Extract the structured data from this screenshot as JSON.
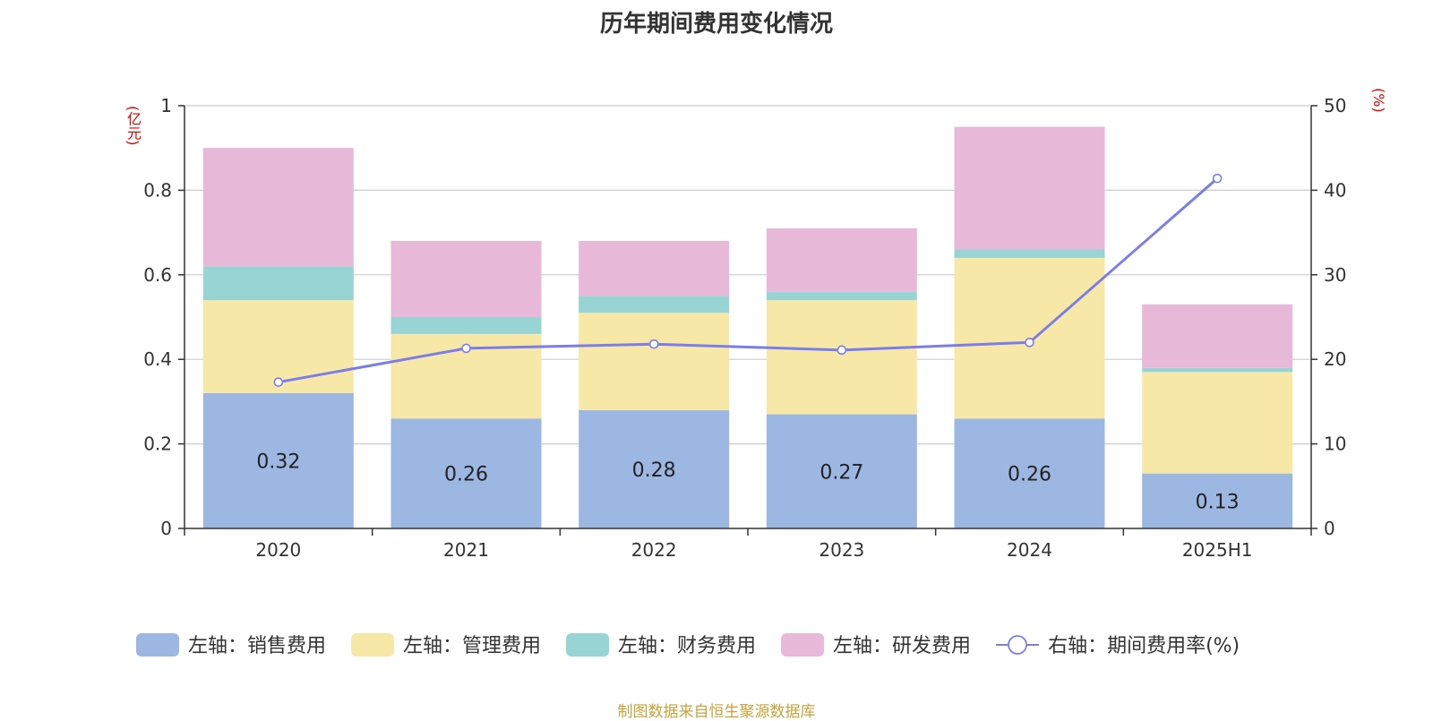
{
  "title": "历年期间费用变化情况",
  "footer": "制图数据来自恒生聚源数据库",
  "chart_data": {
    "type": "bar",
    "stacked": true,
    "title": "历年期间费用变化情况",
    "categories": [
      "2020",
      "2021",
      "2022",
      "2023",
      "2024",
      "2025H1"
    ],
    "y_left": {
      "unit": "(亿元)",
      "ylim": [
        0,
        1
      ],
      "ticks": [
        0,
        0.2,
        0.4,
        0.6,
        0.8,
        1
      ],
      "tick_labels": [
        "0",
        "0.2",
        "0.4",
        "0.6",
        "0.8",
        "1"
      ]
    },
    "y_right": {
      "unit": "(%)",
      "ylim": [
        0,
        50
      ],
      "ticks": [
        0,
        10,
        20,
        30,
        40,
        50
      ],
      "tick_labels": [
        "0",
        "10",
        "20",
        "30",
        "40",
        "50"
      ]
    },
    "grid": true,
    "legend_position": "bottom",
    "series": [
      {
        "name": "左轴：销售费用",
        "axis": "left",
        "type": "bar",
        "color": "#9cb8e2",
        "values": [
          0.32,
          0.26,
          0.28,
          0.27,
          0.26,
          0.13
        ],
        "data_labels": [
          "0.32",
          "0.26",
          "0.28",
          "0.27",
          "0.26",
          "0.13"
        ]
      },
      {
        "name": "左轴：管理费用",
        "axis": "left",
        "type": "bar",
        "color": "#f8e8a8",
        "values": [
          0.22,
          0.2,
          0.23,
          0.27,
          0.38,
          0.24
        ]
      },
      {
        "name": "左轴：财务费用",
        "axis": "left",
        "type": "bar",
        "color": "#98d4d4",
        "values": [
          0.08,
          0.04,
          0.04,
          0.02,
          0.02,
          0.01
        ]
      },
      {
        "name": "左轴：研发费用",
        "axis": "left",
        "type": "bar",
        "color": "#e8b8d8",
        "values": [
          0.28,
          0.18,
          0.13,
          0.15,
          0.29,
          0.15
        ]
      },
      {
        "name": "右轴：期间费用率(%)",
        "axis": "right",
        "type": "line",
        "color": "#7b7ee8",
        "values": [
          17.3,
          21.3,
          21.8,
          21.1,
          22.0,
          41.4
        ]
      }
    ]
  }
}
